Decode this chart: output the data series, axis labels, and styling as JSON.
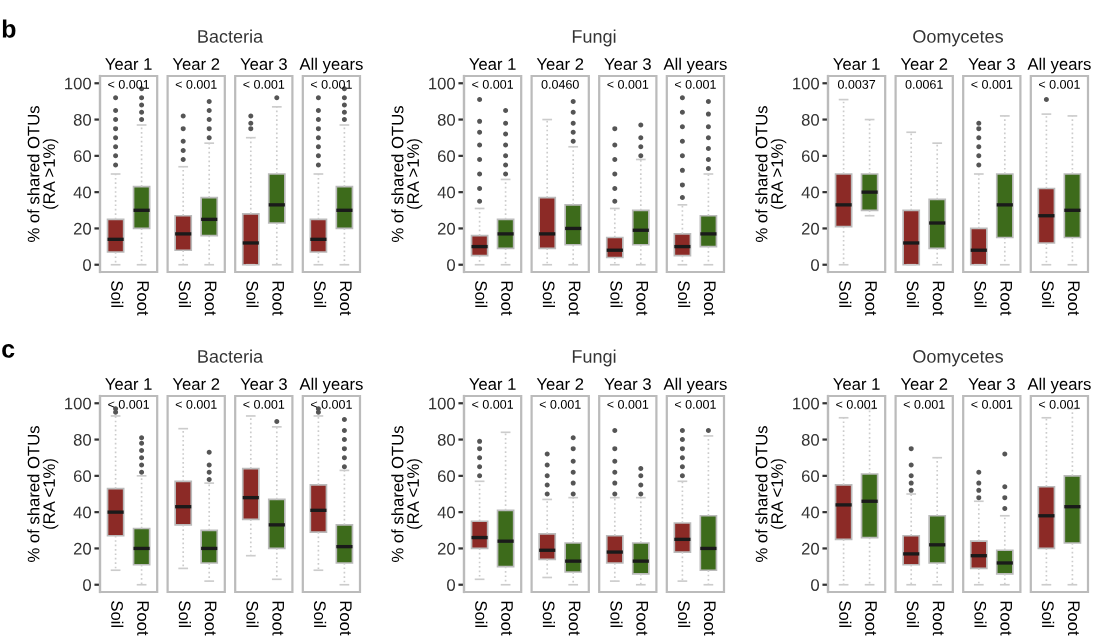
{
  "chart_data": [
    {
      "type": "box",
      "title": "Bacteria",
      "ylabel": "% of shared OTUs\n(RA >1%)",
      "categories": [
        "Soil",
        "Root",
        "Soil",
        "Root",
        "Soil",
        "Root",
        "Soil",
        "Root"
      ],
      "colors": [
        "#8c2a26",
        "#3d6b1b",
        "#8c2a26",
        "#3d6b1b",
        "#8c2a26",
        "#3d6b1b",
        "#8c2a26",
        "#3d6b1b"
      ],
      "ylim": [
        -4,
        104
      ],
      "yticks": [
        0,
        20,
        40,
        60,
        80,
        100
      ],
      "annotations": [
        "Year 1",
        "Year 2",
        "Year 3",
        "All years",
        "< 0.001",
        "< 0.001",
        "< 0.001",
        "< 0.001",
        "b"
      ],
      "boxes": [
        {
          "low": 0,
          "q1": 7,
          "median": 14,
          "q3": 25,
          "high": 50,
          "outliers": [
            55,
            60,
            65,
            70,
            75,
            80,
            85,
            92
          ]
        },
        {
          "low": 0,
          "q1": 20,
          "median": 30,
          "q3": 43,
          "high": 77,
          "outliers": [
            80,
            84,
            88,
            92,
            97
          ]
        },
        {
          "low": 0,
          "q1": 8,
          "median": 17,
          "q3": 27,
          "high": 54,
          "outliers": [
            58,
            63,
            68,
            75,
            82
          ]
        },
        {
          "low": 0,
          "q1": 16,
          "median": 25,
          "q3": 37,
          "high": 67,
          "outliers": [
            70,
            75,
            80,
            85,
            90
          ]
        },
        {
          "low": 0,
          "q1": 0,
          "median": 12,
          "q3": 28,
          "high": 70,
          "outliers": [
            75,
            78,
            82
          ]
        },
        {
          "low": 0,
          "q1": 23,
          "median": 33,
          "q3": 50,
          "high": 87,
          "outliers": [
            92
          ]
        },
        {
          "low": 0,
          "q1": 7,
          "median": 14,
          "q3": 25,
          "high": 50,
          "outliers": [
            55,
            60,
            65,
            70,
            75,
            80,
            85,
            92
          ]
        },
        {
          "low": 0,
          "q1": 20,
          "median": 30,
          "q3": 43,
          "high": 77,
          "outliers": [
            80,
            84,
            88,
            92,
            97
          ]
        }
      ]
    },
    {
      "type": "box",
      "title": "Fungi",
      "ylabel": "% of shared OTUs\n(RA >1%)",
      "categories": [
        "Soil",
        "Root",
        "Soil",
        "Root",
        "Soil",
        "Root",
        "Soil",
        "Root"
      ],
      "colors": [
        "#8c2a26",
        "#3d6b1b",
        "#8c2a26",
        "#3d6b1b",
        "#8c2a26",
        "#3d6b1b",
        "#8c2a26",
        "#3d6b1b"
      ],
      "ylim": [
        -4,
        104
      ],
      "yticks": [
        0,
        20,
        40,
        60,
        80,
        100
      ],
      "annotations": [
        "Year 1",
        "Year 2",
        "Year 3",
        "All years",
        "< 0.001",
        "0.0460",
        "< 0.001",
        "< 0.001"
      ],
      "boxes": [
        {
          "low": 0,
          "q1": 5,
          "median": 10,
          "q3": 16,
          "high": 31,
          "outliers": [
            35,
            42,
            50,
            58,
            66,
            73,
            79,
            91
          ]
        },
        {
          "low": 0,
          "q1": 9,
          "median": 17,
          "q3": 25,
          "high": 47,
          "outliers": [
            50,
            55,
            60,
            66,
            72,
            78,
            85
          ]
        },
        {
          "low": 0,
          "q1": 9,
          "median": 17,
          "q3": 37,
          "high": 80
        },
        {
          "low": 0,
          "q1": 11,
          "median": 20,
          "q3": 33,
          "high": 65,
          "outliers": [
            68,
            73,
            78,
            84,
            90
          ]
        },
        {
          "low": 0,
          "q1": 4,
          "median": 8,
          "q3": 15,
          "high": 31,
          "outliers": [
            35,
            42,
            50,
            58,
            66,
            75
          ]
        },
        {
          "low": 0,
          "q1": 11,
          "median": 19,
          "q3": 30,
          "high": 58,
          "outliers": [
            60,
            65,
            70,
            77
          ]
        },
        {
          "low": 0,
          "q1": 5,
          "median": 10,
          "q3": 17,
          "high": 33,
          "outliers": [
            37,
            44,
            52,
            60,
            68,
            76,
            84,
            92
          ]
        },
        {
          "low": 0,
          "q1": 10,
          "median": 17,
          "q3": 27,
          "high": 50,
          "outliers": [
            53,
            58,
            64,
            70,
            76,
            83,
            90
          ]
        }
      ]
    },
    {
      "type": "box",
      "title": "Oomycetes",
      "ylabel": "% of shared OTUs\n(RA >1%)",
      "categories": [
        "Soil",
        "Root",
        "Soil",
        "Root",
        "Soil",
        "Root",
        "Soil",
        "Root"
      ],
      "colors": [
        "#8c2a26",
        "#3d6b1b",
        "#8c2a26",
        "#3d6b1b",
        "#8c2a26",
        "#3d6b1b",
        "#8c2a26",
        "#3d6b1b"
      ],
      "ylim": [
        -4,
        104
      ],
      "yticks": [
        0,
        20,
        40,
        60,
        80,
        100
      ],
      "annotations": [
        "Year 1",
        "Year 2",
        "Year 3",
        "All years",
        "0.0037",
        "0.0061",
        "< 0.001",
        "< 0.001"
      ],
      "boxes": [
        {
          "low": 0,
          "q1": 21,
          "median": 33,
          "q3": 50,
          "high": 91
        },
        {
          "low": 27,
          "q1": 30,
          "median": 40,
          "q3": 50,
          "high": 80
        },
        {
          "low": 0,
          "q1": 0,
          "median": 12,
          "q3": 30,
          "high": 73
        },
        {
          "low": 0,
          "q1": 9,
          "median": 23,
          "q3": 36,
          "high": 67
        },
        {
          "low": 0,
          "q1": 0,
          "median": 8,
          "q3": 20,
          "high": 50,
          "outliers": [
            55,
            60,
            65,
            70,
            75,
            78
          ]
        },
        {
          "low": 0,
          "q1": 15,
          "median": 33,
          "q3": 50,
          "high": 82
        },
        {
          "low": 0,
          "q1": 12,
          "median": 27,
          "q3": 42,
          "high": 83,
          "outliers": [
            91
          ]
        },
        {
          "low": 0,
          "q1": 15,
          "median": 30,
          "q3": 50,
          "high": 82
        }
      ]
    },
    {
      "type": "box",
      "title": "Bacteria",
      "ylabel": "% of shared OTUs\n(RA <1%)",
      "categories": [
        "Soil",
        "Root",
        "Soil",
        "Root",
        "Soil",
        "Root",
        "Soil",
        "Root"
      ],
      "colors": [
        "#8c2a26",
        "#3d6b1b",
        "#8c2a26",
        "#3d6b1b",
        "#8c2a26",
        "#3d6b1b",
        "#8c2a26",
        "#3d6b1b"
      ],
      "ylim": [
        -4,
        104
      ],
      "yticks": [
        0,
        20,
        40,
        60,
        80,
        100
      ],
      "annotations": [
        "Year 1",
        "Year 2",
        "Year 3",
        "All years",
        "< 0.001",
        "< 0.001",
        "< 0.001",
        "< 0.001",
        "c"
      ],
      "boxes": [
        {
          "low": 8,
          "q1": 27,
          "median": 40,
          "q3": 53,
          "high": 93,
          "outliers": [
            95,
            97
          ]
        },
        {
          "low": 0,
          "q1": 11,
          "median": 20,
          "q3": 31,
          "high": 60,
          "outliers": [
            62,
            66,
            70,
            74,
            78,
            81
          ]
        },
        {
          "low": 9,
          "q1": 33,
          "median": 43,
          "q3": 57,
          "high": 86
        },
        {
          "low": 2,
          "q1": 12,
          "median": 20,
          "q3": 30,
          "high": 56,
          "outliers": [
            58,
            62,
            66,
            73
          ]
        },
        {
          "low": 16,
          "q1": 36,
          "median": 48,
          "q3": 64,
          "high": 93
        },
        {
          "low": 3,
          "q1": 20,
          "median": 33,
          "q3": 47,
          "high": 87,
          "outliers": [
            90
          ]
        },
        {
          "low": 8,
          "q1": 29,
          "median": 41,
          "q3": 55,
          "high": 93,
          "outliers": [
            95,
            97
          ]
        },
        {
          "low": 0,
          "q1": 12,
          "median": 21,
          "q3": 33,
          "high": 63,
          "outliers": [
            65,
            70,
            75,
            80,
            85,
            91
          ]
        }
      ]
    },
    {
      "type": "box",
      "title": "Fungi",
      "ylabel": "% of shared OTUs\n(RA <1%)",
      "categories": [
        "Soil",
        "Root",
        "Soil",
        "Root",
        "Soil",
        "Root",
        "Soil",
        "Root"
      ],
      "colors": [
        "#8c2a26",
        "#3d6b1b",
        "#8c2a26",
        "#3d6b1b",
        "#8c2a26",
        "#3d6b1b",
        "#8c2a26",
        "#3d6b1b"
      ],
      "ylim": [
        -4,
        104
      ],
      "yticks": [
        0,
        20,
        40,
        60,
        80,
        100
      ],
      "annotations": [
        "Year 1",
        "Year 2",
        "Year 3",
        "All years",
        "< 0.001",
        "< 0.001",
        "< 0.001",
        "< 0.001"
      ],
      "boxes": [
        {
          "low": 3,
          "q1": 20,
          "median": 26,
          "q3": 35,
          "high": 57,
          "outliers": [
            60,
            65,
            70,
            75,
            79
          ]
        },
        {
          "low": 0,
          "q1": 10,
          "median": 24,
          "q3": 41,
          "high": 84
        },
        {
          "low": 4,
          "q1": 14,
          "median": 19,
          "q3": 28,
          "high": 47,
          "outliers": [
            50,
            55,
            60,
            66,
            72
          ]
        },
        {
          "low": 0,
          "q1": 7,
          "median": 13,
          "q3": 23,
          "high": 48,
          "outliers": [
            50,
            56,
            62,
            68,
            75,
            81
          ]
        },
        {
          "low": 2,
          "q1": 12,
          "median": 18,
          "q3": 27,
          "high": 48,
          "outliers": [
            50,
            56,
            62,
            68,
            75,
            85
          ]
        },
        {
          "low": 0,
          "q1": 6,
          "median": 13,
          "q3": 23,
          "high": 48,
          "outliers": [
            50,
            55,
            60,
            64
          ]
        },
        {
          "low": 2,
          "q1": 18,
          "median": 25,
          "q3": 34,
          "high": 57,
          "outliers": [
            60,
            65,
            70,
            75,
            80,
            85
          ]
        },
        {
          "low": 0,
          "q1": 8,
          "median": 20,
          "q3": 38,
          "high": 82,
          "outliers": [
            85
          ]
        }
      ]
    },
    {
      "type": "box",
      "title": "Oomycetes",
      "ylabel": "% of shared OTUs\n(RA <1%)",
      "categories": [
        "Soil",
        "Root",
        "Soil",
        "Root",
        "Soil",
        "Root",
        "Soil",
        "Root"
      ],
      "colors": [
        "#8c2a26",
        "#3d6b1b",
        "#8c2a26",
        "#3d6b1b",
        "#8c2a26",
        "#3d6b1b",
        "#8c2a26",
        "#3d6b1b"
      ],
      "ylim": [
        -4,
        104
      ],
      "yticks": [
        0,
        20,
        40,
        60,
        80,
        100
      ],
      "annotations": [
        "Year 1",
        "Year 2",
        "Year 3",
        "All years",
        "< 0.001",
        "< 0.001",
        "< 0.001",
        "< 0.001"
      ],
      "boxes": [
        {
          "low": 0,
          "q1": 25,
          "median": 44,
          "q3": 55,
          "high": 92
        },
        {
          "low": 0,
          "q1": 26,
          "median": 46,
          "q3": 61,
          "high": 97
        },
        {
          "low": 0,
          "q1": 11,
          "median": 17,
          "q3": 27,
          "high": 50,
          "outliers": [
            52,
            56,
            60,
            66,
            75
          ]
        },
        {
          "low": 0,
          "q1": 12,
          "median": 22,
          "q3": 38,
          "high": 70
        },
        {
          "low": 0,
          "q1": 9,
          "median": 16,
          "q3": 24,
          "high": 46,
          "outliers": [
            48,
            52,
            56,
            62
          ]
        },
        {
          "low": 0,
          "q1": 6,
          "median": 12,
          "q3": 19,
          "high": 38,
          "outliers": [
            42,
            48,
            54,
            72
          ]
        },
        {
          "low": 0,
          "q1": 20,
          "median": 38,
          "q3": 54,
          "high": 92
        },
        {
          "low": 0,
          "q1": 23,
          "median": 43,
          "q3": 60,
          "high": 97
        }
      ]
    }
  ]
}
